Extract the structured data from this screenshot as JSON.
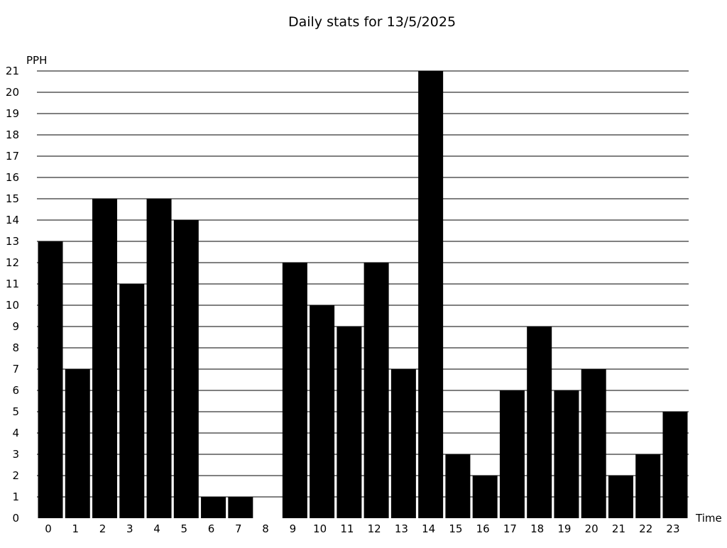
{
  "chart_data": {
    "type": "bar",
    "title": "Daily stats for 13/5/2025",
    "xlabel": "Time",
    "ylabel": "PPH",
    "categories": [
      "0",
      "1",
      "2",
      "3",
      "4",
      "5",
      "6",
      "7",
      "8",
      "9",
      "10",
      "11",
      "12",
      "13",
      "14",
      "15",
      "16",
      "17",
      "18",
      "19",
      "20",
      "21",
      "22",
      "23"
    ],
    "values": [
      13,
      7,
      15,
      11,
      15,
      14,
      1,
      1,
      0,
      12,
      10,
      9,
      12,
      7,
      21,
      3,
      2,
      6,
      9,
      6,
      7,
      2,
      3,
      5
    ],
    "ylim": [
      0,
      21
    ],
    "yticks": [
      0,
      1,
      2,
      3,
      4,
      5,
      6,
      7,
      8,
      9,
      10,
      11,
      12,
      13,
      14,
      15,
      16,
      17,
      18,
      19,
      20,
      21
    ],
    "grid": true,
    "bar_color": "#000000",
    "grid_color": "#000000",
    "background": "#ffffff"
  }
}
